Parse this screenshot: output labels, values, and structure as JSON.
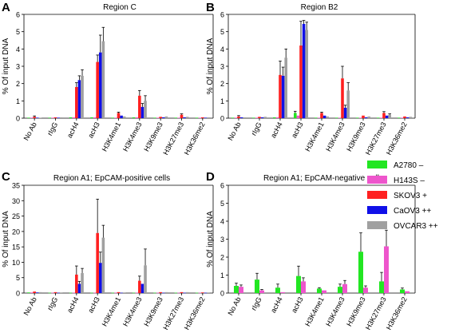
{
  "legend": [
    {
      "name": "A2780 –",
      "color": "#22e622"
    },
    {
      "name": "H143S –",
      "color": "#ee55cc"
    },
    {
      "name": "SKOV3 +",
      "color": "#ff2020"
    },
    {
      "name": "CaOV3 ++",
      "color": "#1010e8"
    },
    {
      "name": "OVCAR3 ++",
      "color": "#a0a0a0"
    }
  ],
  "chart_data": [
    {
      "panel": "A",
      "type": "bar",
      "title": "Region C",
      "ylabel": "% Of input DNA",
      "ylim": [
        0,
        6
      ],
      "yticks": [
        "0",
        "1",
        "2",
        "3",
        "4",
        "5",
        "6"
      ],
      "categories": [
        "No Ab",
        "rIgG",
        "acH4",
        "acH3",
        "H3K4me1",
        "H3K4me3",
        "H3K9me3",
        "H3K27me3",
        "H3K36me2"
      ],
      "series": [
        {
          "name": "A2780 –",
          "values": [
            0.03,
            0.03,
            0.05,
            0.05,
            0.03,
            0.05,
            0.03,
            0.03,
            0.03
          ]
        },
        {
          "name": "H143S –",
          "values": [
            0.03,
            0.03,
            0.05,
            0.05,
            0.03,
            0.05,
            0.03,
            0.03,
            0.03
          ]
        },
        {
          "name": "SKOV3 +",
          "values": [
            0.08,
            0.05,
            1.8,
            3.25,
            0.3,
            1.3,
            0.08,
            0.2,
            0.05
          ]
        },
        {
          "name": "CaOV3 ++",
          "values": [
            0.03,
            0.03,
            2.2,
            3.8,
            0.15,
            0.65,
            0.05,
            0.05,
            0.03
          ]
        },
        {
          "name": "OVCAR3 ++",
          "values": [
            0.03,
            0.05,
            2.45,
            4.45,
            0.1,
            1.0,
            0.1,
            0.08,
            0.05
          ]
        }
      ],
      "errors": [
        [
          0,
          0,
          0,
          0,
          0,
          0,
          0,
          0,
          0
        ],
        [
          0,
          0,
          0,
          0,
          0,
          0,
          0,
          0,
          0
        ],
        [
          0.05,
          0,
          0.25,
          0.4,
          0.05,
          0.3,
          0,
          0.05,
          0
        ],
        [
          0,
          0,
          0.25,
          1.0,
          0,
          0.2,
          0,
          0,
          0
        ],
        [
          0,
          0,
          0.35,
          0.8,
          0,
          0.3,
          0,
          0,
          0
        ]
      ]
    },
    {
      "panel": "B",
      "type": "bar",
      "title": "Region B2",
      "ylabel": "% Of input DNA",
      "ylim": [
        0,
        6
      ],
      "yticks": [
        "0",
        "1",
        "2",
        "3",
        "4",
        "5",
        "6"
      ],
      "categories": [
        "No Ab",
        "rIgG",
        "acH4",
        "acH3",
        "H3K4me1",
        "H3K4me3",
        "H3K9me3",
        "H3K27me3",
        "H3K36me2"
      ],
      "series": [
        {
          "name": "A2780 –",
          "values": [
            0.03,
            0.03,
            0.05,
            0.3,
            0.03,
            0.03,
            0.03,
            0.03,
            0.03
          ]
        },
        {
          "name": "H143S –",
          "values": [
            0.03,
            0.03,
            0.05,
            0.15,
            0.03,
            0.03,
            0.03,
            0.03,
            0.03
          ]
        },
        {
          "name": "SKOV3 +",
          "values": [
            0.1,
            0.08,
            2.5,
            4.2,
            0.3,
            2.3,
            0.15,
            0.3,
            0.1
          ]
        },
        {
          "name": "CaOV3 ++",
          "values": [
            0.05,
            0.05,
            2.45,
            5.45,
            0.15,
            0.6,
            0.05,
            0.15,
            0.05
          ]
        },
        {
          "name": "OVCAR3 ++",
          "values": [
            0.05,
            0.08,
            3.5,
            5.1,
            0.1,
            1.6,
            0.1,
            0.2,
            0.08
          ]
        }
      ],
      "errors": [
        [
          0,
          0,
          0,
          0.1,
          0,
          0,
          0,
          0,
          0
        ],
        [
          0,
          0,
          0,
          0,
          0,
          0,
          0,
          0,
          0
        ],
        [
          0.05,
          0,
          0.8,
          1.4,
          0.05,
          0.7,
          0,
          0.08,
          0
        ],
        [
          0,
          0,
          0.5,
          0.2,
          0,
          0.15,
          0,
          0,
          0
        ],
        [
          0,
          0,
          0.5,
          0.45,
          0,
          0.45,
          0,
          0.05,
          0
        ]
      ]
    },
    {
      "panel": "C",
      "type": "bar",
      "title": "Region A1; EpCAM-positive cells",
      "ylabel": "% Of input DNA",
      "ylim": [
        0,
        35
      ],
      "yticks": [
        "0",
        "5",
        "10",
        "15",
        "20",
        "25",
        "30",
        "35"
      ],
      "categories": [
        "No Ab",
        "rIgG",
        "acH4",
        "acH3",
        "H3K4me1",
        "H3K4me3",
        "H3K9me3",
        "H3K27me3",
        "H3K36me2"
      ],
      "series": [
        {
          "name": "A2780 –",
          "values": [
            0.2,
            0.1,
            0.1,
            0.1,
            0.1,
            0.1,
            0.1,
            0.1,
            0.1
          ]
        },
        {
          "name": "H143S –",
          "values": [
            0.2,
            0.1,
            0.1,
            0.1,
            0.1,
            0.1,
            0.1,
            0.1,
            0.1
          ]
        },
        {
          "name": "SKOV3 +",
          "values": [
            0.5,
            0.3,
            6.0,
            19.5,
            0.3,
            4.0,
            0.3,
            0.3,
            0.2
          ]
        },
        {
          "name": "CaOV3 ++",
          "values": [
            0.2,
            0.1,
            3.0,
            9.8,
            0.1,
            3.0,
            0.1,
            0.1,
            0.1
          ]
        },
        {
          "name": "OVCAR3 ++",
          "values": [
            0.3,
            0.2,
            6.5,
            18.0,
            0.2,
            9.0,
            0.3,
            0.3,
            0.2
          ]
        }
      ],
      "errors": [
        [
          0,
          0,
          0,
          0,
          0,
          0,
          0,
          0,
          0
        ],
        [
          0,
          0,
          0,
          0,
          0,
          0,
          0,
          0,
          0
        ],
        [
          0,
          0,
          2.8,
          11.0,
          0,
          1.5,
          0,
          0,
          0
        ],
        [
          0,
          0,
          0.8,
          3.5,
          0,
          0,
          0,
          0,
          0
        ],
        [
          0,
          0,
          1.5,
          4.0,
          0,
          5.3,
          0,
          0,
          0
        ]
      ]
    },
    {
      "panel": "D",
      "type": "bar",
      "title": "Region A1; EpCAM-negative cells",
      "ylabel": "% Of input DNA",
      "ylim": [
        0,
        6
      ],
      "yticks": [
        "0",
        "1",
        "2",
        "3",
        "4",
        "5",
        "6"
      ],
      "categories": [
        "No Ab",
        "rIgG",
        "acH4",
        "acH3",
        "H3K4me1",
        "H3K4me3",
        "H3K9me3",
        "H3K27me3",
        "H3K36me2"
      ],
      "series": [
        {
          "name": "A2780 –",
          "values": [
            0.4,
            0.75,
            0.3,
            0.95,
            0.25,
            0.35,
            2.3,
            0.65,
            0.2
          ]
        },
        {
          "name": "H143S –",
          "values": [
            0.35,
            0.15,
            0.05,
            0.65,
            0.15,
            0.5,
            0.3,
            2.6,
            0.1
          ]
        }
      ],
      "errors": [
        [
          0.15,
          0.35,
          0.2,
          0.55,
          0.05,
          0.15,
          1.05,
          0.5,
          0.08
        ],
        [
          0.1,
          0.05,
          0,
          0.2,
          0,
          0.2,
          0.1,
          0.9,
          0
        ]
      ]
    }
  ]
}
